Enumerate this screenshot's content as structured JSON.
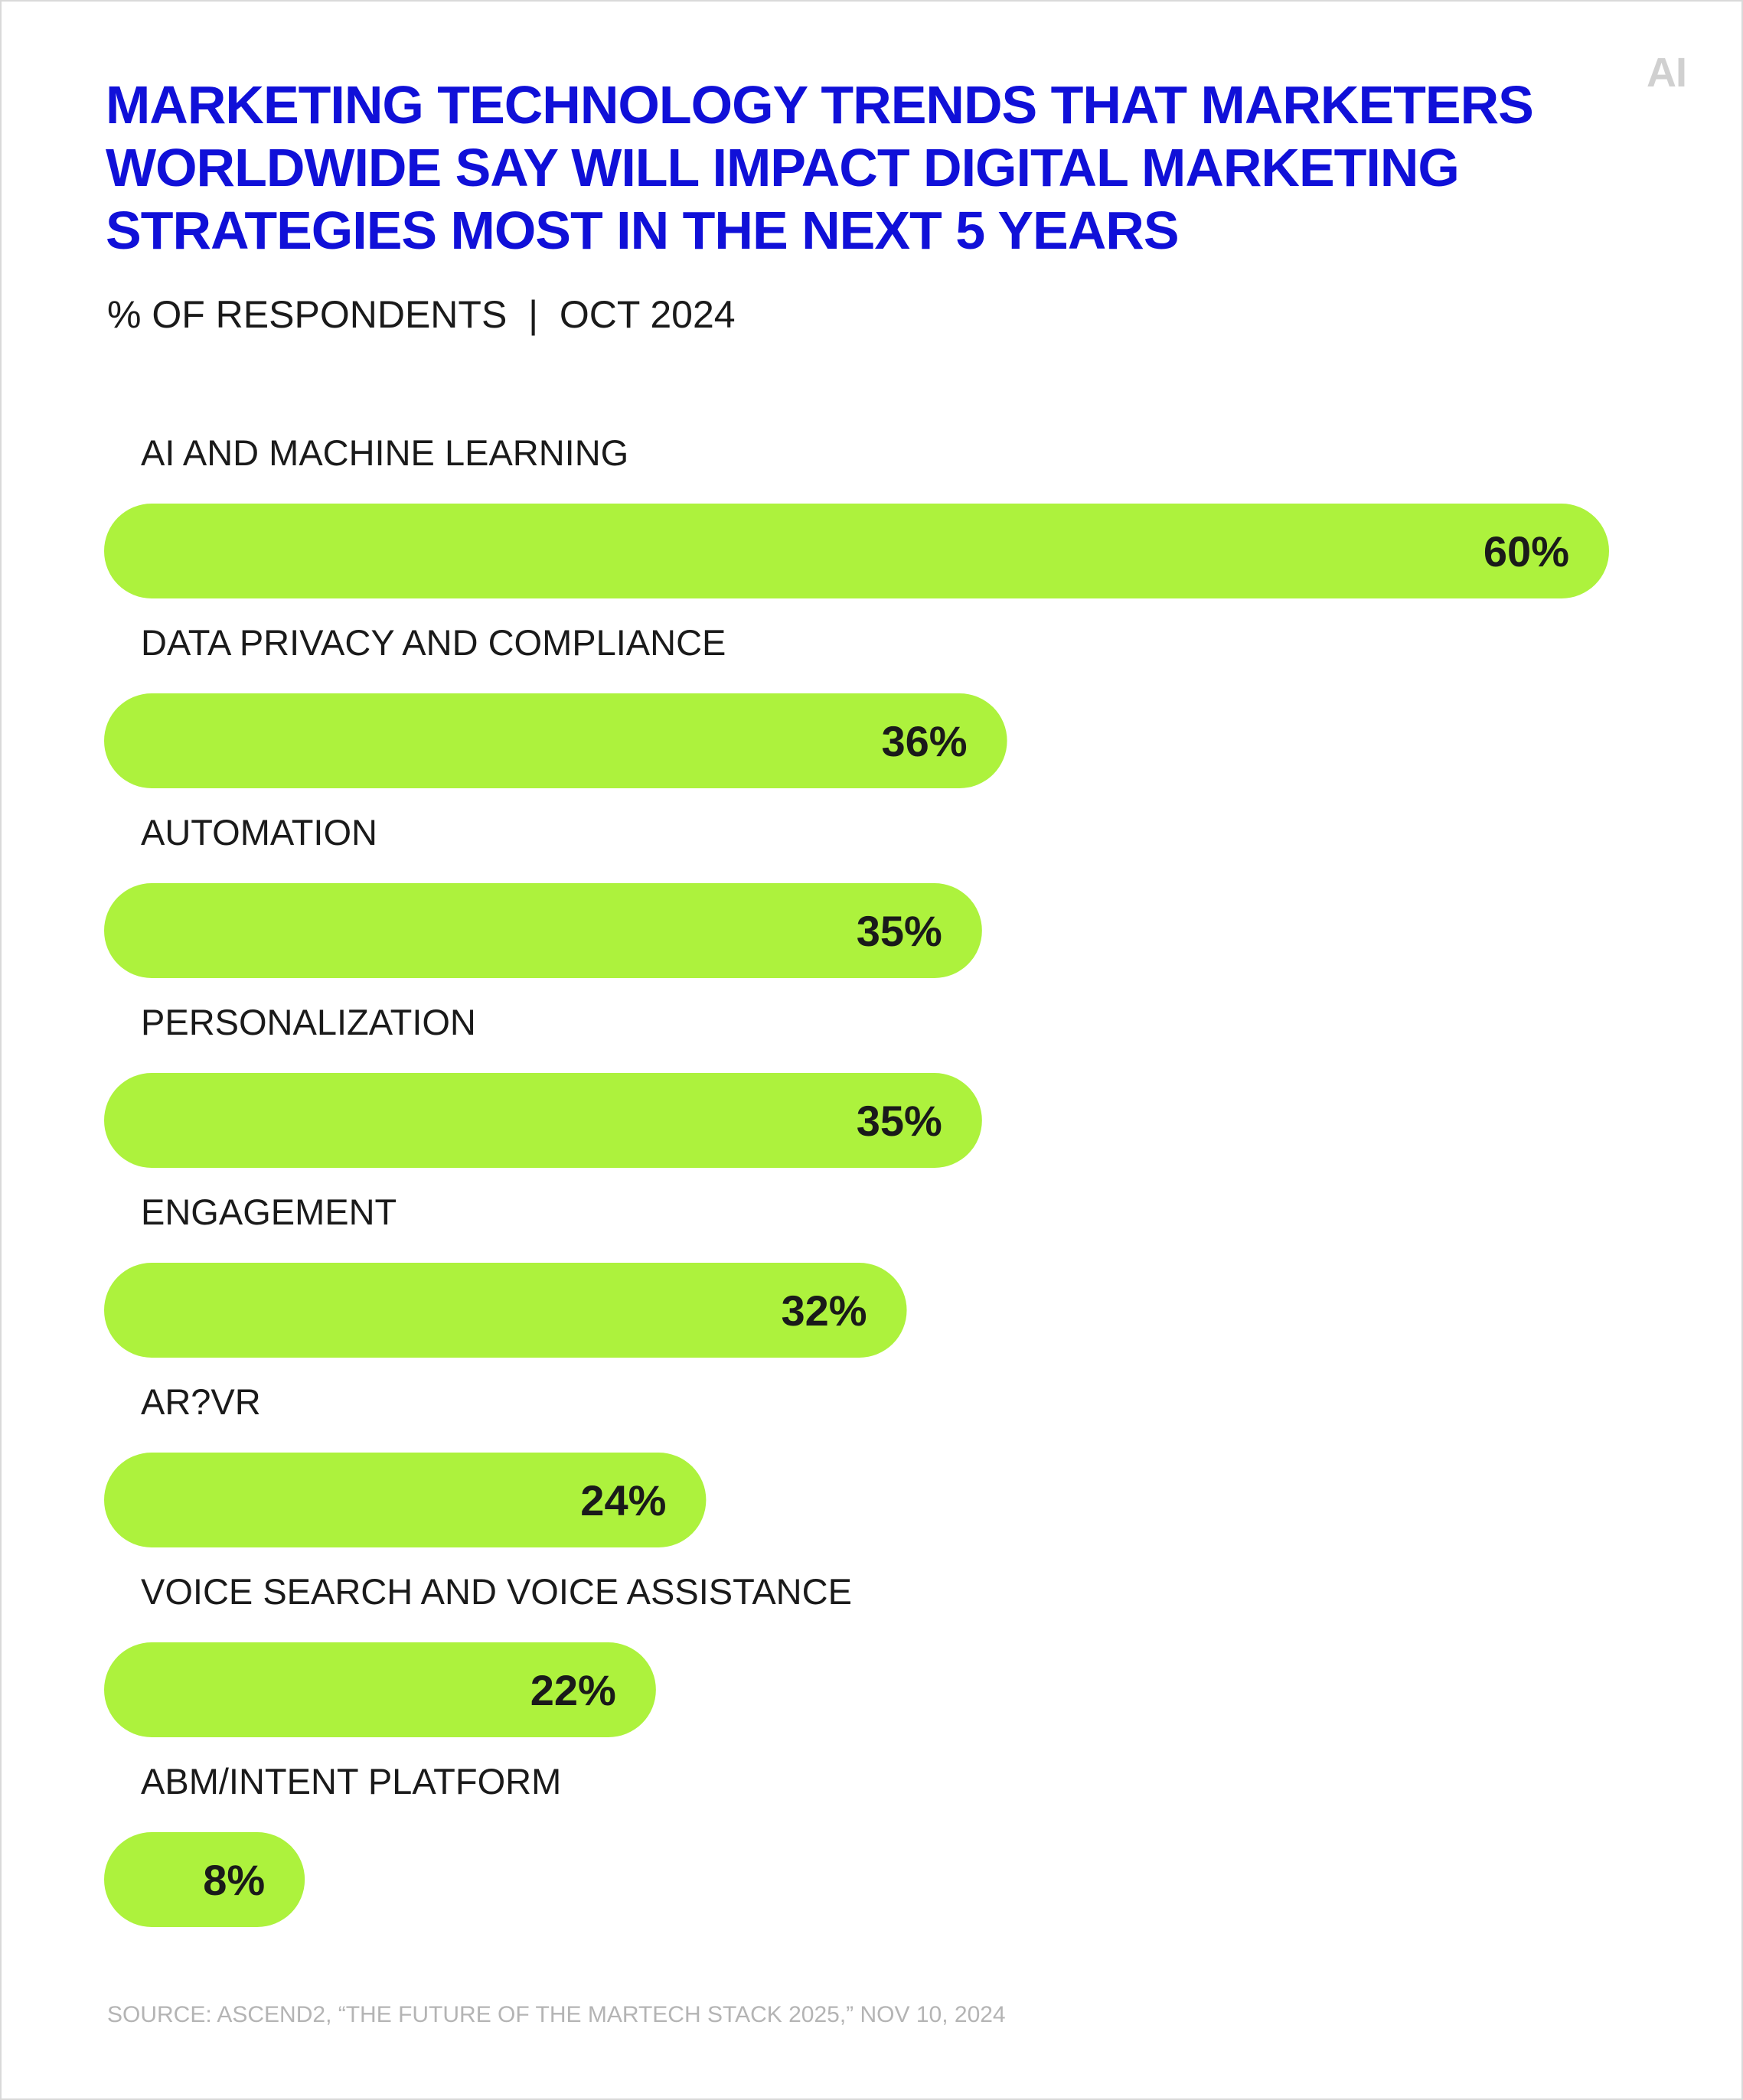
{
  "logo": "AI",
  "header": {
    "title": "MARKETING TECHNOLOGY TRENDS THAT MARKETERS WORLDWIDE SAY WILL IMPACT DIGITAL MARKETING STRATEGIES MOST IN THE NEXT 5 YEARS",
    "subtitle": "% OF RESPONDENTS  |  OCT 2024"
  },
  "colors": {
    "title": "#1010d8",
    "bar": "#adf23d",
    "label": "#1a1a1a",
    "source": "#b4b4b4"
  },
  "chart_data": {
    "type": "bar",
    "orientation": "horizontal",
    "categories": [
      "AI AND MACHINE LEARNING",
      "DATA PRIVACY AND COMPLIANCE",
      "AUTOMATION",
      "PERSONALIZATION",
      "ENGAGEMENT",
      "AR?VR",
      "VOICE SEARCH AND VOICE ASSISTANCE",
      "ABM/INTENT PLATFORM"
    ],
    "values": [
      60,
      36,
      35,
      35,
      32,
      24,
      22,
      8
    ],
    "value_labels": [
      "60%",
      "36%",
      "35%",
      "35%",
      "32%",
      "24%",
      "22%",
      "8%"
    ],
    "unit": "%",
    "grid": false,
    "legend": "none"
  },
  "source": "SOURCE: ASCEND2, “THE FUTURE OF THE MARTECH STACK 2025,” NOV 10, 2024"
}
